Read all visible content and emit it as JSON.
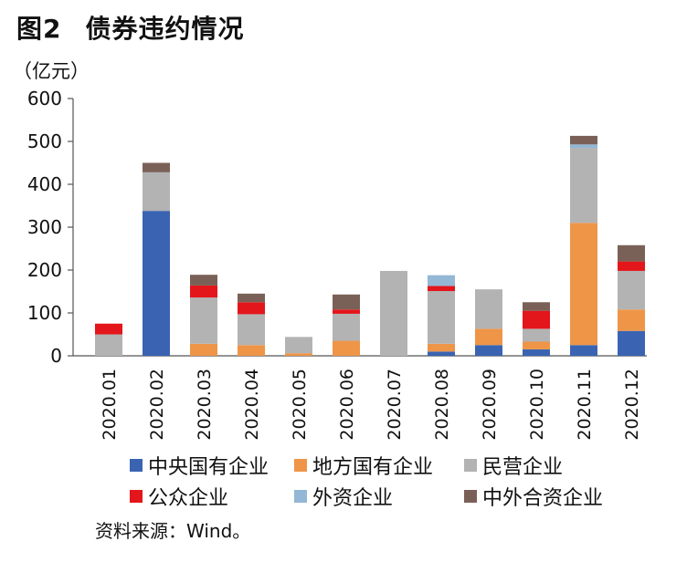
{
  "header": {
    "figure_label": "图2",
    "title": "债券违约情况",
    "unit": "（亿元）"
  },
  "source_text": "资料来源：Wind。",
  "colors": {
    "中央国有企业": "#3a64b2",
    "地方国有企业": "#ee9548",
    "民营企业": "#b3b3b3",
    "公众企业": "#e3161b",
    "外资企业": "#93b7d5",
    "中外合资企业": "#7a6157"
  },
  "legend": [
    {
      "name": "中央国有企业",
      "color": "#3a64b2"
    },
    {
      "name": "地方国有企业",
      "color": "#ee9548"
    },
    {
      "name": "民营企业",
      "color": "#b3b3b3"
    },
    {
      "name": "公众企业",
      "color": "#e3161b"
    },
    {
      "name": "外资企业",
      "color": "#93b7d5"
    },
    {
      "name": "中外合资企业",
      "color": "#7a6157"
    }
  ],
  "chart_data": {
    "type": "bar",
    "stacked": true,
    "title": "债券违约情况",
    "ylabel": "（亿元）",
    "ylim": [
      0,
      600
    ],
    "yticks": [
      0,
      100,
      200,
      300,
      400,
      500,
      600
    ],
    "grid": false,
    "legend_position": "bottom",
    "categories": [
      "2020.01",
      "2020.02",
      "2020.03",
      "2020.04",
      "2020.05",
      "2020.06",
      "2020.07",
      "2020.08",
      "2020.09",
      "2020.10",
      "2020.11",
      "2020.12"
    ],
    "series": [
      {
        "name": "中央国有企业",
        "values": [
          0,
          338,
          0,
          0,
          0,
          0,
          0,
          10,
          25,
          15,
          25,
          58
        ]
      },
      {
        "name": "地方国有企业",
        "values": [
          0,
          0,
          28,
          25,
          6,
          35,
          0,
          18,
          38,
          18,
          285,
          50
        ]
      },
      {
        "name": "民营企业",
        "values": [
          50,
          90,
          108,
          72,
          38,
          63,
          198,
          123,
          92,
          30,
          175,
          90
        ]
      },
      {
        "name": "公众企业",
        "values": [
          25,
          0,
          28,
          28,
          0,
          10,
          0,
          12,
          0,
          42,
          0,
          22
        ]
      },
      {
        "name": "外资企业",
        "values": [
          0,
          0,
          0,
          0,
          0,
          0,
          0,
          25,
          0,
          0,
          8,
          0
        ]
      },
      {
        "name": "中外合资企业",
        "values": [
          0,
          22,
          25,
          20,
          0,
          35,
          0,
          0,
          0,
          20,
          20,
          38
        ]
      }
    ]
  }
}
